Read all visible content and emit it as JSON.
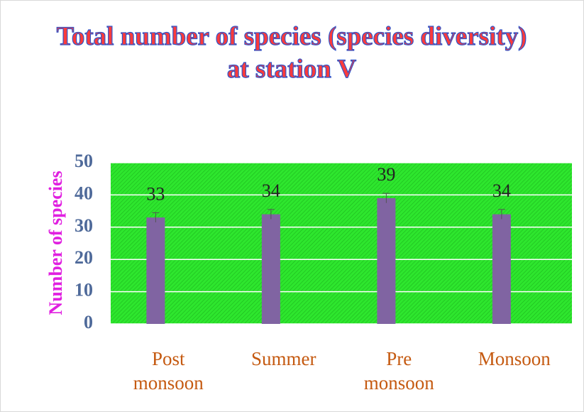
{
  "chart_data": {
    "type": "bar",
    "title": "Total number of species (species diversity) at station V",
    "y_label": "Number of species",
    "categories": [
      "Post monsoon",
      "Summer",
      "Pre monsoon",
      "Monsoon"
    ],
    "values": [
      33,
      34,
      39,
      34
    ],
    "errors": [
      1.5,
      1.5,
      1.5,
      1.5
    ],
    "color": "#8064a2",
    "ylim": [
      0,
      50
    ],
    "yticks": [
      0,
      10,
      20,
      30,
      40,
      50
    ],
    "grid": true
  }
}
